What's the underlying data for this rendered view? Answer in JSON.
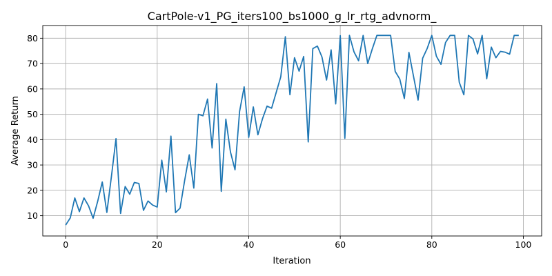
{
  "chart_data": {
    "type": "line",
    "title": "CartPole-v1_PG_iters100_bs1000_g_lr_rtg_advnorm_",
    "xlabel": "Iteration",
    "ylabel": "Average Return",
    "xlim": [
      -5,
      104
    ],
    "ylim": [
      2,
      85
    ],
    "xticks": [
      0,
      20,
      40,
      60,
      80,
      100
    ],
    "yticks": [
      10,
      20,
      30,
      40,
      50,
      60,
      70,
      80
    ],
    "grid": true,
    "color": "#1f77b4",
    "series": [
      {
        "x": [
          0,
          1,
          2,
          3,
          4,
          5,
          6,
          7,
          8,
          9,
          10,
          11,
          12,
          13,
          14,
          15,
          16,
          17,
          18,
          19,
          20,
          21,
          22,
          23,
          24,
          25,
          26,
          27,
          28,
          29,
          30,
          31,
          32,
          33,
          34,
          35,
          36,
          37,
          38,
          39,
          40,
          41,
          42,
          43,
          44,
          45,
          46,
          47,
          48,
          49,
          50,
          51,
          52,
          53,
          54,
          55,
          56,
          57,
          58,
          59,
          60,
          61,
          62,
          63,
          64,
          65,
          66,
          67,
          68,
          69,
          70,
          71,
          72,
          73,
          74,
          75,
          76,
          77,
          78,
          79,
          80,
          81,
          82,
          83,
          84,
          85,
          86,
          87,
          88,
          89,
          90,
          91,
          92,
          93,
          94,
          95,
          96,
          97,
          98,
          99
        ],
        "values": [
          6.3,
          9.1,
          17.0,
          11.6,
          17.0,
          13.9,
          9.0,
          15.7,
          23.3,
          11.3,
          25.5,
          40.4,
          10.9,
          21.5,
          18.5,
          23.1,
          22.7,
          12.1,
          15.8,
          14.2,
          13.4,
          31.9,
          19.4,
          41.4,
          11.2,
          13.0,
          23.9,
          34.0,
          20.9,
          50.0,
          49.4,
          56.0,
          36.7,
          62.1,
          19.6,
          48.1,
          35.2,
          28.1,
          51.1,
          60.8,
          40.9,
          52.9,
          41.9,
          48.2,
          53.2,
          52.4,
          58.6,
          64.8,
          80.6,
          57.7,
          72.3,
          67.0,
          72.8,
          39.1,
          75.9,
          76.9,
          72.6,
          63.5,
          75.4,
          54.1,
          81.0,
          40.5,
          81.1,
          74.6,
          71.1,
          81.1,
          70.0,
          75.8,
          81.1,
          81.1,
          81.1,
          81.1,
          66.9,
          63.9,
          56.2,
          74.4,
          65.0,
          55.6,
          72.1,
          76.0,
          81.1,
          72.9,
          69.7,
          78.3,
          81.1,
          81.1,
          62.6,
          57.7,
          81.1,
          79.7,
          73.8,
          81.1,
          64.0,
          76.5,
          72.3,
          74.8,
          74.5,
          73.7,
          81.1,
          81.1
        ]
      }
    ]
  }
}
